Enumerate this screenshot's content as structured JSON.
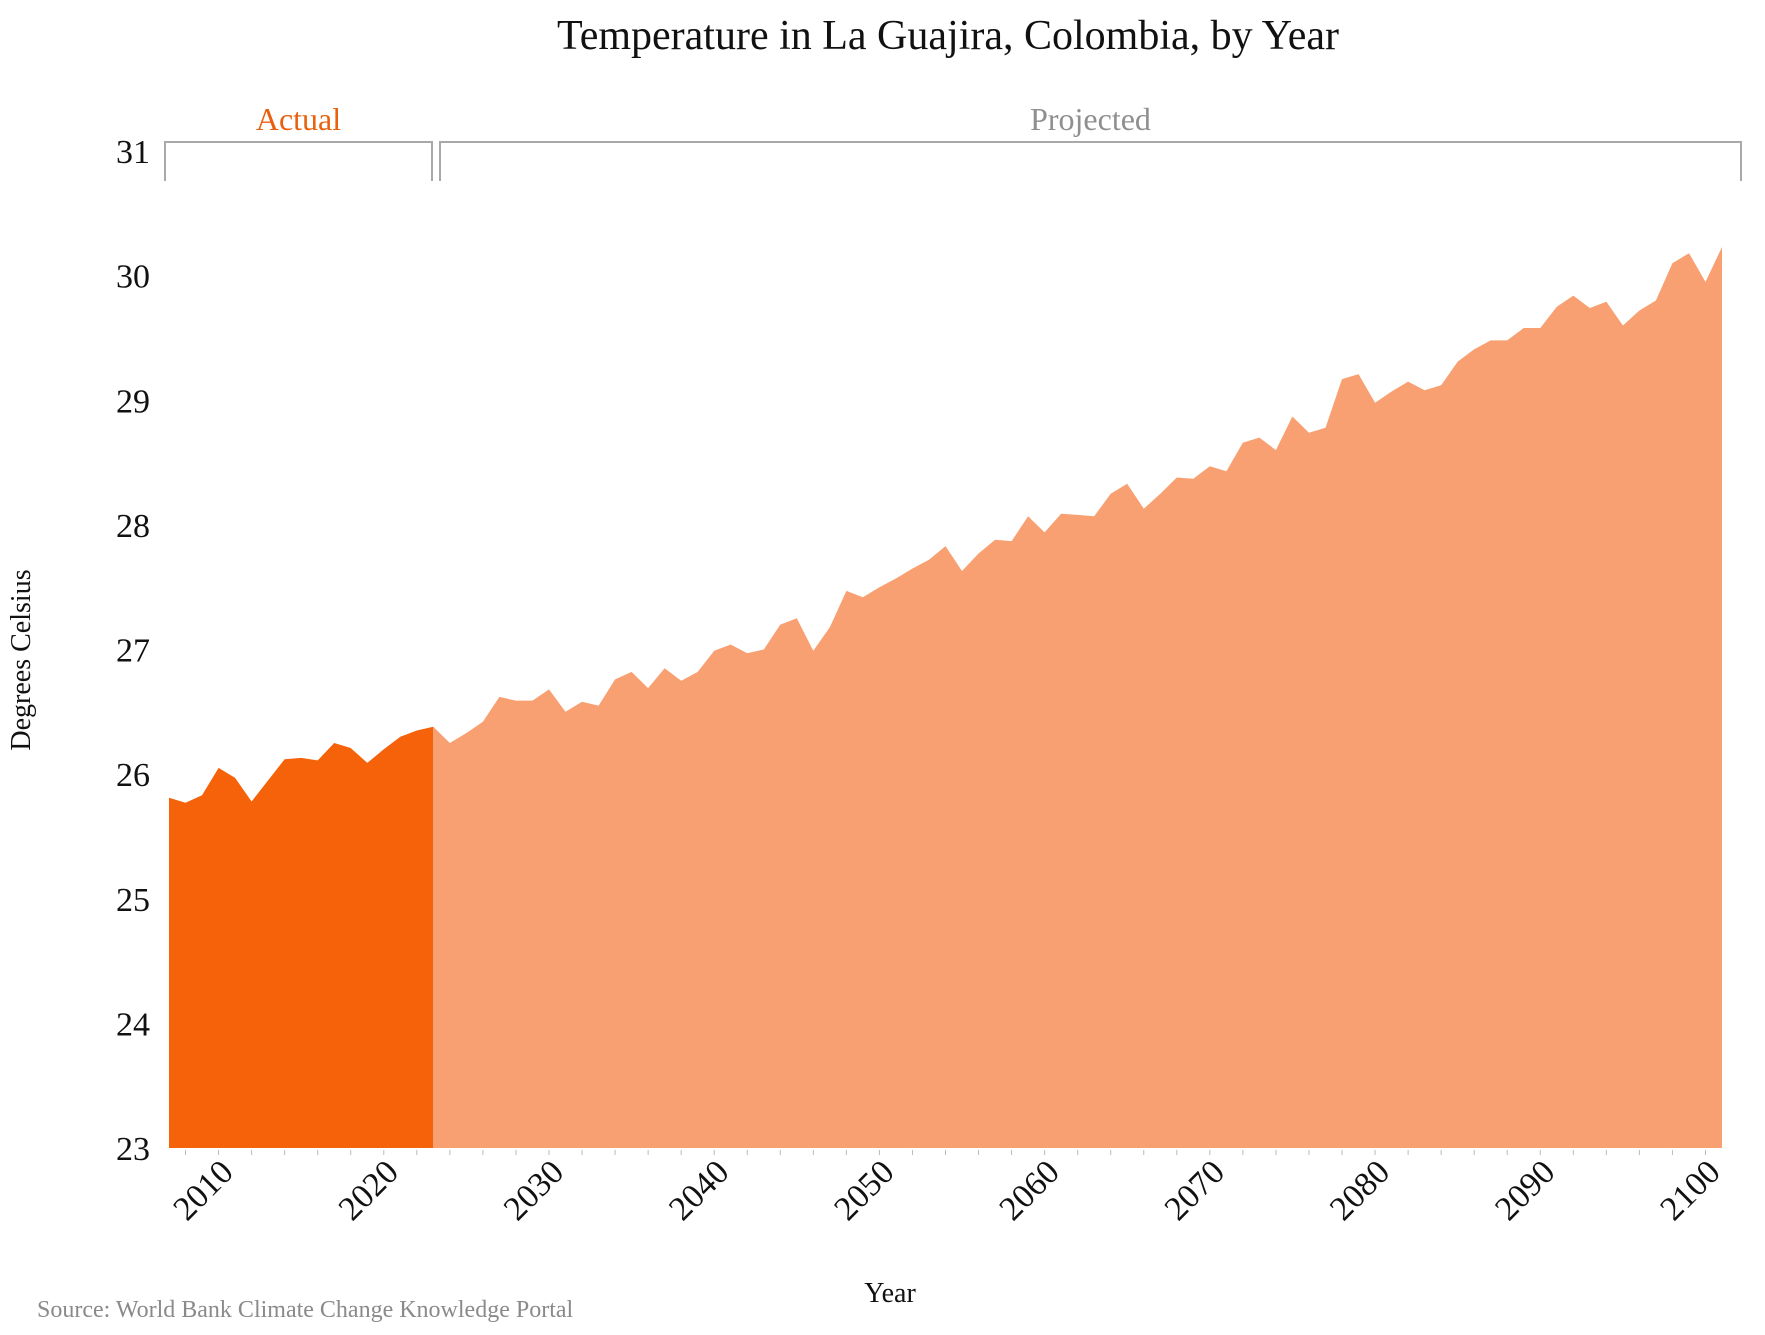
{
  "colors": {
    "actual": "#f5620a",
    "projected": "#f8a072",
    "bracket": "#a9a9a9",
    "actual_label": "#e8610e",
    "projected_label": "#8f8f8f"
  },
  "source": "Source: World Bank Climate Change Knowledge Portal",
  "chart_data": {
    "type": "area",
    "title": "Temperature in La Guajira, Colombia, by Year",
    "xlabel": "Year",
    "ylabel": "Degrees Celsius",
    "ylim": [
      23,
      31
    ],
    "xlim": [
      2006,
      2100
    ],
    "yticks": [
      23,
      24,
      25,
      26,
      27,
      28,
      29,
      30,
      31
    ],
    "xticks": [
      2010,
      2020,
      2030,
      2040,
      2050,
      2060,
      2070,
      2080,
      2090,
      2100
    ],
    "grid": false,
    "legend": "none",
    "bands": [
      {
        "name": "Actual",
        "start": 2006,
        "end": 2022
      },
      {
        "name": "Projected",
        "start": 2022,
        "end": 2100
      }
    ],
    "series": [
      {
        "name": "Actual",
        "x": [
          2006,
          2007,
          2008,
          2009,
          2010,
          2011,
          2012,
          2013,
          2014,
          2015,
          2016,
          2017,
          2018,
          2019,
          2020,
          2021,
          2022
        ],
        "values": [
          25.81,
          25.77,
          25.83,
          26.05,
          25.97,
          25.78,
          25.95,
          26.12,
          26.13,
          26.11,
          26.25,
          26.21,
          26.09,
          26.2,
          26.3,
          26.35,
          26.38
        ]
      },
      {
        "name": "Projected",
        "x": [
          2022,
          2023,
          2024,
          2025,
          2026,
          2027,
          2028,
          2029,
          2030,
          2031,
          2032,
          2033,
          2034,
          2035,
          2036,
          2037,
          2038,
          2039,
          2040,
          2041,
          2042,
          2043,
          2044,
          2045,
          2046,
          2047,
          2048,
          2049,
          2050,
          2051,
          2052,
          2053,
          2054,
          2055,
          2056,
          2057,
          2058,
          2059,
          2060,
          2061,
          2062,
          2063,
          2064,
          2065,
          2066,
          2067,
          2068,
          2069,
          2070,
          2071,
          2072,
          2073,
          2074,
          2075,
          2076,
          2077,
          2078,
          2079,
          2080,
          2081,
          2082,
          2083,
          2084,
          2085,
          2086,
          2087,
          2088,
          2089,
          2090,
          2091,
          2092,
          2093,
          2094,
          2095,
          2096,
          2097,
          2098,
          2099,
          2100
        ],
        "values": [
          26.38,
          26.25,
          26.33,
          26.42,
          26.62,
          26.59,
          26.59,
          26.68,
          26.5,
          26.58,
          26.55,
          26.76,
          26.82,
          26.69,
          26.85,
          26.75,
          26.82,
          26.99,
          27.04,
          26.97,
          27.0,
          27.2,
          27.25,
          26.99,
          27.18,
          27.47,
          27.42,
          27.5,
          27.57,
          27.65,
          27.72,
          27.83,
          27.63,
          27.77,
          27.88,
          27.87,
          28.07,
          27.94,
          28.09,
          28.08,
          28.07,
          28.25,
          28.33,
          28.13,
          28.25,
          28.38,
          28.37,
          28.47,
          28.43,
          28.66,
          28.7,
          28.6,
          28.87,
          28.74,
          28.78,
          29.17,
          29.21,
          28.98,
          29.07,
          29.15,
          29.08,
          29.12,
          29.31,
          29.41,
          29.48,
          29.48,
          29.58,
          29.58,
          29.75,
          29.84,
          29.74,
          29.79,
          29.6,
          29.72,
          29.8,
          30.1,
          30.18,
          29.95,
          30.23
        ]
      }
    ]
  }
}
